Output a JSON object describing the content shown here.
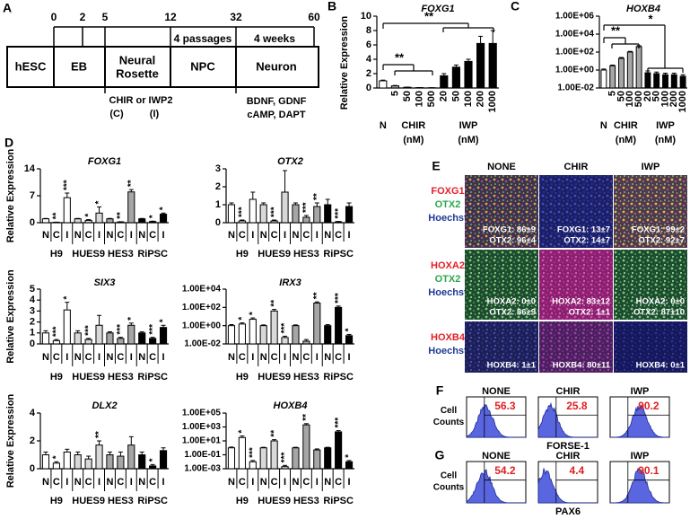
{
  "panel_a": {
    "letter": "A",
    "days": [
      0,
      2,
      5,
      12,
      32,
      60
    ],
    "stages": [
      "hESC",
      "EB",
      [
        "Neural",
        "Rosette"
      ],
      "NPC",
      "Neuron"
    ],
    "durations": [
      "4 passages",
      "4 weeks"
    ],
    "treatment": "CHIR or IWP2",
    "treatment_codes": [
      "(C)",
      "(I)"
    ],
    "factors": [
      "BDNF, GDNF",
      "cAMP, DAPT"
    ]
  },
  "chart_data": [
    {
      "type": "bar",
      "panel": "B",
      "title": "FOXG1",
      "y_label": "Relative Expression",
      "ylim": [
        0,
        10
      ],
      "yticks": [
        0,
        2,
        4,
        6,
        8,
        10
      ],
      "series": [
        {
          "color": "#ffffff",
          "categories": [
            "N"
          ],
          "values": [
            1
          ],
          "errors": [
            0.1
          ]
        },
        {
          "name": "CHIR",
          "unit": "(nM)",
          "color": "#a6a6a6",
          "categories": [
            "5",
            "50",
            "100",
            "500"
          ],
          "values": [
            0.3,
            0.1,
            0.05,
            0.03
          ],
          "errors": [
            0.05,
            0.02,
            0.01,
            0.01
          ]
        },
        {
          "name": "IWP",
          "unit": "(nM)",
          "color": "#000000",
          "categories": [
            "20",
            "50",
            "100",
            "200",
            "1000"
          ],
          "values": [
            1.7,
            2.9,
            3.7,
            6.2,
            6.2
          ],
          "errors": [
            0.3,
            0.3,
            0.3,
            1.0,
            1.8
          ]
        }
      ],
      "annotations": [
        "**",
        "**"
      ]
    },
    {
      "type": "bar",
      "panel": "C",
      "title": "HOXB4",
      "log_scale": true,
      "ylim": [
        0.01,
        1000000
      ],
      "yticks": [
        {
          "value": 0.01,
          "label": "1.00E-02"
        },
        {
          "value": 1,
          "label": "1.00E+00"
        },
        {
          "value": 100,
          "label": "1.00E+02"
        },
        {
          "value": 10000,
          "label": "1.00E+04"
        },
        {
          "value": 1000000,
          "label": "1.00E+06"
        }
      ],
      "series": [
        {
          "color": "#ffffff",
          "categories": [
            "N"
          ],
          "values": [
            1
          ],
          "errors": [
            0.3
          ]
        },
        {
          "name": "CHIR",
          "unit": "(nM)",
          "color": "#a6a6a6",
          "categories": [
            "5",
            "50",
            "100",
            "500"
          ],
          "values": [
            3,
            20,
            100,
            400
          ],
          "errors": [
            0.6,
            5,
            20,
            120
          ]
        },
        {
          "name": "IWP",
          "unit": "(nM)",
          "color": "#000000",
          "categories": [
            "20",
            "50",
            "100",
            "200",
            "1000"
          ],
          "values": [
            0.5,
            0.4,
            0.3,
            0.3,
            0.2
          ],
          "errors": [
            0.3,
            0.2,
            0.15,
            0.15,
            0.1
          ]
        }
      ],
      "annotations": [
        "**",
        "*"
      ]
    },
    {
      "type": "bar",
      "title": "FOXG1",
      "y_label": "Relative Expression",
      "categories": [
        "N",
        "C",
        "I"
      ],
      "ylim": [
        0,
        14
      ],
      "yticks": [
        0,
        7,
        14
      ],
      "series": [
        {
          "name": "H9",
          "color": "#ffffff",
          "values": [
            1,
            0.1,
            6.5
          ],
          "errors": [
            0.1,
            0.05,
            1.2
          ],
          "stars": [
            null,
            "**",
            "***"
          ]
        },
        {
          "name": "HUES9",
          "color": "#d9d9d9",
          "values": [
            1,
            0.6,
            2.5
          ],
          "errors": [
            0.1,
            0.2,
            1.6
          ],
          "stars": [
            null,
            "*",
            "*"
          ]
        },
        {
          "name": "HES3",
          "color": "#a6a6a6",
          "values": [
            1,
            0.2,
            8
          ],
          "errors": [
            0.1,
            0.05,
            0.6
          ],
          "stars": [
            null,
            "**",
            "**"
          ]
        },
        {
          "name": "RiPSC",
          "color": "#000000",
          "values": [
            1,
            0.3,
            2.2
          ],
          "errors": [
            0.1,
            0.1,
            0.3
          ],
          "stars": [
            null,
            "*",
            "*"
          ]
        }
      ]
    },
    {
      "type": "bar",
      "title": "OTX2",
      "categories": [
        "N",
        "C",
        "I"
      ],
      "ylim": [
        0,
        3
      ],
      "yticks": [
        0,
        1,
        2,
        3
      ],
      "series": [
        {
          "name": "H9",
          "color": "#ffffff",
          "values": [
            1,
            0.1,
            1.3
          ],
          "errors": [
            0.1,
            0.05,
            0.4
          ],
          "stars": [
            null,
            "***",
            null
          ]
        },
        {
          "name": "HUES9",
          "color": "#d9d9d9",
          "values": [
            1,
            0.1,
            1.7
          ],
          "errors": [
            0.1,
            0.05,
            1.2
          ],
          "stars": [
            null,
            "***",
            null
          ]
        },
        {
          "name": "HES3",
          "color": "#a6a6a6",
          "values": [
            1,
            0.3,
            0.9
          ],
          "errors": [
            0.1,
            0.1,
            0.2
          ],
          "stars": [
            null,
            "***",
            "**"
          ]
        },
        {
          "name": "RiPSC",
          "color": "#000000",
          "values": [
            1,
            0.05,
            0.9
          ],
          "errors": [
            0.3,
            0.02,
            0.2
          ],
          "stars": [
            null,
            "***",
            null
          ]
        }
      ]
    },
    {
      "type": "bar",
      "title": "SIX3",
      "y_label": "Relative Expression",
      "categories": [
        "N",
        "C",
        "I"
      ],
      "ylim": [
        0,
        5
      ],
      "yticks": [
        0,
        1,
        2,
        3,
        4,
        5
      ],
      "series": [
        {
          "name": "H9",
          "color": "#ffffff",
          "values": [
            1,
            0.3,
            3.1
          ],
          "errors": [
            0.2,
            0.1,
            0.7
          ],
          "stars": [
            null,
            "***",
            "*"
          ]
        },
        {
          "name": "HUES9",
          "color": "#d9d9d9",
          "values": [
            1,
            0.4,
            1.7
          ],
          "errors": [
            0.2,
            0.1,
            0.9
          ],
          "stars": [
            null,
            "***",
            null
          ]
        },
        {
          "name": "HES3",
          "color": "#a6a6a6",
          "values": [
            1,
            0.5,
            1.7
          ],
          "errors": [
            0.1,
            0.1,
            0.2
          ],
          "stars": [
            null,
            "***",
            "*"
          ]
        },
        {
          "name": "RiPSC",
          "color": "#000000",
          "values": [
            1,
            0.5,
            1.5
          ],
          "errors": [
            0.1,
            0.1,
            0.2
          ],
          "stars": [
            null,
            "***",
            "*"
          ]
        }
      ]
    },
    {
      "type": "bar",
      "title": "IRX3",
      "log_scale": true,
      "categories": [
        "N",
        "C",
        "I"
      ],
      "ylim": [
        0.01,
        10000
      ],
      "yticks": [
        {
          "value": 0.01,
          "label": "1.00E-02"
        },
        {
          "value": 1,
          "label": "1.00E+00"
        },
        {
          "value": 100,
          "label": "1.00E+02"
        },
        {
          "value": 10000,
          "label": "1.00E+04"
        }
      ],
      "series": [
        {
          "name": "H9",
          "color": "#ffffff",
          "values": [
            1,
            1.5,
            5
          ],
          "errors": [
            0.3,
            0.5,
            2
          ],
          "stars": [
            null,
            "*",
            "*"
          ]
        },
        {
          "name": "HUES9",
          "color": "#d9d9d9",
          "values": [
            1,
            40,
            0.05
          ],
          "errors": [
            0.2,
            20,
            0.02
          ],
          "stars": [
            null,
            "**",
            "***"
          ]
        },
        {
          "name": "HES3",
          "color": "#a6a6a6",
          "values": [
            1,
            0.02,
            300
          ],
          "errors": [
            0.2,
            0.01,
            100
          ],
          "stars": [
            null,
            null,
            "**"
          ]
        },
        {
          "name": "RiPSC",
          "color": "#000000",
          "values": [
            1,
            100,
            0.08
          ],
          "errors": [
            0.3,
            40,
            0.03
          ],
          "stars": [
            null,
            "***",
            "*"
          ]
        }
      ]
    },
    {
      "type": "bar",
      "title": "DLX2",
      "y_label": "Relative Expression",
      "categories": [
        "N",
        "C",
        "I"
      ],
      "ylim": [
        0,
        4
      ],
      "yticks": [
        0,
        2,
        4
      ],
      "series": [
        {
          "name": "H9",
          "color": "#ffffff",
          "values": [
            1,
            0.4,
            1.2
          ],
          "errors": [
            0.2,
            0.1,
            0.2
          ],
          "stars": [
            null,
            "*",
            null
          ]
        },
        {
          "name": "HUES9",
          "color": "#d9d9d9",
          "values": [
            1,
            0.7,
            1.7
          ],
          "errors": [
            0.2,
            0.2,
            0.3
          ],
          "stars": [
            null,
            null,
            "**"
          ]
        },
        {
          "name": "HES3",
          "color": "#a6a6a6",
          "values": [
            1,
            0.9,
            1.7
          ],
          "errors": [
            0.2,
            0.3,
            0.6
          ]
        },
        {
          "name": "RiPSC",
          "color": "#000000",
          "values": [
            1,
            0.2,
            1.3
          ],
          "errors": [
            0.2,
            0.1,
            0.2
          ],
          "stars": [
            null,
            "*",
            null
          ]
        }
      ]
    },
    {
      "type": "bar",
      "title": "HOXB4",
      "log_scale": true,
      "categories": [
        "N",
        "C",
        "I"
      ],
      "ylim": [
        0.001,
        100000
      ],
      "yticks": [
        {
          "value": 0.001,
          "label": "1.00E-03"
        },
        {
          "value": 0.1,
          "label": "1.00E-01"
        },
        {
          "value": 10,
          "label": "1.00E+01"
        },
        {
          "value": 1000,
          "label": "1.00E+03"
        },
        {
          "value": 100000,
          "label": "1.00E+05"
        }
      ],
      "series": [
        {
          "name": "H9",
          "color": "#ffffff",
          "values": [
            1,
            30,
            0.01
          ],
          "errors": [
            0.3,
            20,
            0.005
          ],
          "stars": [
            null,
            "*",
            "***"
          ]
        },
        {
          "name": "HUES9",
          "color": "#d9d9d9",
          "values": [
            1,
            10,
            0.002
          ],
          "errors": [
            0.2,
            5,
            0.001
          ],
          "stars": [
            null,
            "**",
            "***"
          ]
        },
        {
          "name": "HES3",
          "color": "#a6a6a6",
          "values": [
            1,
            2000,
            0.5
          ],
          "errors": [
            0.2,
            1000,
            0.2
          ],
          "stars": [
            null,
            "**",
            null
          ]
        },
        {
          "name": "RiPSC",
          "color": "#000000",
          "values": [
            1,
            200,
            0.01
          ],
          "errors": [
            0.2,
            100,
            0.005
          ],
          "stars": [
            null,
            "***",
            "*"
          ]
        }
      ]
    }
  ],
  "panel_d": {
    "letter": "D"
  },
  "panel_e": {
    "letter": "E",
    "columns": [
      "NONE",
      "CHIR",
      "IWP"
    ],
    "rows": [
      {
        "stains": [
          {
            "text": "FOXG1",
            "color": "#e3202a"
          },
          {
            "text": "OTX2",
            "color": "#2ca84a"
          },
          {
            "text": "Hoechst",
            "color": "#1f3a93"
          }
        ],
        "quant": [
          [
            "FOXG1: 86±9",
            "OTX2: 96±4"
          ],
          [
            "FOXG1: 13±7",
            "OTX2: 14±7"
          ],
          [
            "FOXG1: 99±2",
            "OTX2: 92±7"
          ]
        ]
      },
      {
        "stains": [
          {
            "text": "HOXA2",
            "color": "#e3202a"
          },
          {
            "text": "OTX2",
            "color": "#2ca84a"
          },
          {
            "text": "Hoechst",
            "color": "#1f3a93"
          }
        ],
        "quant": [
          [
            "HOXA2: 0±0",
            "OTX2: 86±9"
          ],
          [
            "HOXA2: 83±12",
            "OTX2: 1±1"
          ],
          [
            "HOXA2: 0±0",
            "OTX2: 87±10"
          ]
        ]
      },
      {
        "stains": [
          {
            "text": "HOXB4",
            "color": "#e3202a"
          },
          {
            "text": "Hoechst",
            "color": "#1f3a93"
          }
        ],
        "quant": [
          [
            "HOXB4: 1±1"
          ],
          [
            "HOXB4: 80±11"
          ],
          [
            "HOXB4: 0±1"
          ]
        ]
      }
    ]
  },
  "panel_f": {
    "letter": "F",
    "columns": [
      "NONE",
      "CHIR",
      "IWP"
    ],
    "values": [
      56.3,
      25.8,
      90.2
    ],
    "y_label": [
      "Cell",
      "Counts"
    ],
    "x_label": "FORSE-1"
  },
  "panel_g": {
    "letter": "G",
    "columns": [
      "NONE",
      "CHIR",
      "IWP"
    ],
    "values": [
      54.2,
      4.4,
      90.1
    ],
    "y_label": [
      "Cell",
      "Counts"
    ],
    "x_label": "PAX6"
  }
}
